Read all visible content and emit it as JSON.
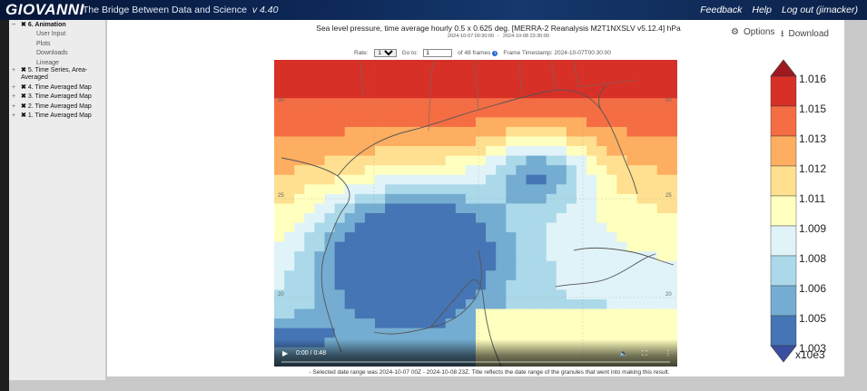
{
  "header": {
    "logo": "GIOVANNI",
    "tagline": "The Bridge Between Data and Science",
    "version": "v 4.40",
    "links": [
      "Feedback",
      "Help",
      "Log out (jimacker)"
    ]
  },
  "sidebar": {
    "tree": [
      {
        "label": "6. Animation",
        "expanded": true,
        "children": [
          "User Input",
          "Plots",
          "Downloads",
          "Lineage"
        ]
      },
      {
        "label": "5. Time Series, Area-Averaged",
        "expanded": false
      },
      {
        "label": "4. Time Averaged Map",
        "expanded": false
      },
      {
        "label": "3. Time Averaged Map",
        "expanded": false
      },
      {
        "label": "2. Time Averaged Map",
        "expanded": false
      },
      {
        "label": "1. Time Averaged Map",
        "expanded": false
      }
    ]
  },
  "plot": {
    "title": "Sea level pressure, time average hourly 0.5 x 0.625 deg. [MERRA-2 Reanalysis M2T1NXSLV v5.12.4] hPa",
    "date_start": "2024-10-07 00:30:00",
    "date_sep": "-",
    "date_end": "2024-10-08 23:30:00",
    "options_label": "Options",
    "download_label": "Download"
  },
  "controls": {
    "rate_label": "Rate:",
    "rate_value": "1x",
    "goto_label": "Go to:",
    "goto_value": "1",
    "frames_text": "of 48 frames",
    "timestamp_label": "Frame Timestamp: 2024-10-07T00:30:00"
  },
  "video": {
    "time": "0:00 / 0:48",
    "progress": 0
  },
  "map": {
    "lat_labels": [
      "30",
      "25",
      "20"
    ],
    "grid_colors": {
      "c1": "#d73027",
      "c2": "#f46d43",
      "c3": "#fdae61",
      "c4": "#fee090",
      "c5": "#ffffbf",
      "c6": "#e0f3f8",
      "c7": "#abd9e9",
      "c8": "#74add1",
      "c9": "#4575b4"
    }
  },
  "colorbar": {
    "ticks": [
      "1.016",
      "1.015",
      "1.013",
      "1.012",
      "1.011",
      "1.009",
      "1.008",
      "1.006",
      "1.005",
      "1.003"
    ],
    "unit": "x10e3",
    "colors": [
      "#d73027",
      "#f46d43",
      "#fdae61",
      "#fee090",
      "#ffffbf",
      "#e0f3f8",
      "#abd9e9",
      "#74add1",
      "#4575b4"
    ],
    "arrow_top": "#9e1a20",
    "arrow_bottom": "#3a4fa0"
  },
  "caption": "- Selected date range was 2024-10-07 00Z - 2024-10-08 23Z. Title reflects the date range of the granules that went into making this result."
}
